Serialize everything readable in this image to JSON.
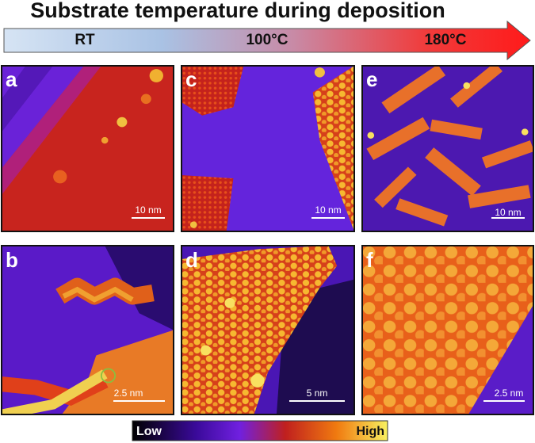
{
  "header": {
    "title": "Substrate temperature during deposition"
  },
  "temperature_axis": {
    "labels": [
      "RT",
      "100°C",
      "180°C"
    ]
  },
  "panels": [
    {
      "label": "a",
      "scale_bar": "10 nm"
    },
    {
      "label": "b",
      "scale_bar": "2.5 nm"
    },
    {
      "label": "c",
      "scale_bar": "10 nm"
    },
    {
      "label": "d",
      "scale_bar": "5 nm"
    },
    {
      "label": "e",
      "scale_bar": "10 nm"
    },
    {
      "label": "f",
      "scale_bar": "2.5 nm"
    }
  ],
  "colorbar": {
    "low": "Low",
    "high": "High"
  }
}
